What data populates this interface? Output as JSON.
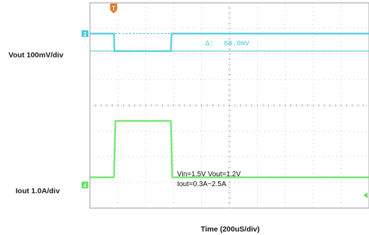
{
  "chart_data": {
    "type": "line",
    "title": "",
    "xlabel": "Time (200uS/div)",
    "x_unit": "us",
    "xlim": [
      0,
      2000
    ],
    "x_div": 200,
    "y_divisions": 8,
    "grid": true,
    "background": "#ffffff",
    "grid_color": "#b0b0b0",
    "trigger_marker": {
      "label": "T",
      "x": 170,
      "color": "#e8742a"
    },
    "channels": [
      {
        "id": "2",
        "label": "Vout  100mV/div",
        "color": "#3ec8d8",
        "unit": "mV",
        "scale_per_div": 100,
        "reference_div": 6.8,
        "points": [
          [
            0,
            0
          ],
          [
            172,
            0
          ],
          [
            175,
            -68
          ],
          [
            180,
            -68
          ],
          [
            580,
            -68
          ],
          [
            585,
            -2
          ],
          [
            590,
            0
          ],
          [
            2000,
            0
          ]
        ],
        "reference_line": true,
        "measurement": {
          "label": "Δ:",
          "value": "68.0mV"
        }
      },
      {
        "id": "4",
        "label": "Iout  1.0A/div",
        "color": "#5ee05e",
        "unit": "A",
        "scale_per_div": 1.0,
        "reference_div": 0.9,
        "points": [
          [
            0,
            0.3
          ],
          [
            172,
            0.3
          ],
          [
            182,
            2.5
          ],
          [
            580,
            2.5
          ],
          [
            590,
            0.3
          ],
          [
            2000,
            0.3
          ]
        ]
      }
    ],
    "annotations": [
      "Vin=1.5V   Vout=1.2V",
      "Iout=0.3A~2.5A"
    ]
  }
}
